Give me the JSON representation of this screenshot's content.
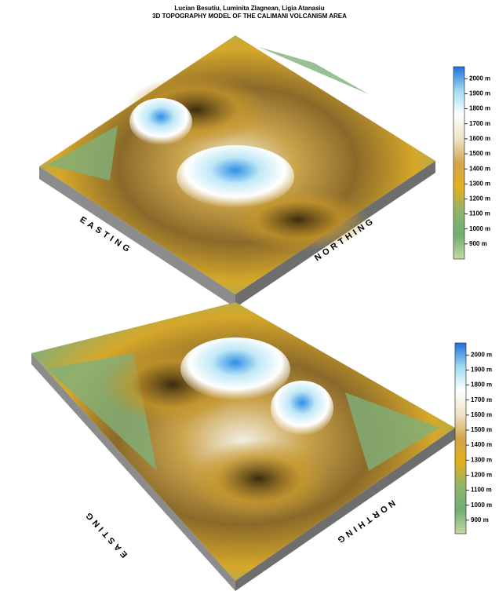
{
  "header": {
    "authors": "Lucian Besutiu, Luminita Zlagnean, Ligia Atanasiu",
    "title": "3D TOPOGRAPHY MODEL OF THE CALIMANI VOLCANISM AREA"
  },
  "models": [
    {
      "easting_label": "EASTING",
      "northing_label": "NORTHING",
      "colorbar": {
        "lim": [
          800,
          2080
        ],
        "colors": [
          "#c4d9a4",
          "#6fae74",
          "#8fb66a",
          "#e3ae1c",
          "#d3a54a",
          "#efe3c8",
          "#ffffff",
          "#9fdcf2",
          "#1f6fe0"
        ],
        "ticks": [
          {
            "value": 900,
            "label": "900 m"
          },
          {
            "value": 1000,
            "label": "1000 m"
          },
          {
            "value": 1100,
            "label": "1100 m"
          },
          {
            "value": 1200,
            "label": "1200 m"
          },
          {
            "value": 1300,
            "label": "1300 m"
          },
          {
            "value": 1400,
            "label": "1400 m"
          },
          {
            "value": 1500,
            "label": "1500 m"
          },
          {
            "value": 1600,
            "label": "1600 m"
          },
          {
            "value": 1700,
            "label": "1700 m"
          },
          {
            "value": 1800,
            "label": "1800 m"
          },
          {
            "value": 1900,
            "label": "1900 m"
          },
          {
            "value": 2000,
            "label": "2000 m"
          }
        ]
      }
    },
    {
      "easting_label": "EASTING",
      "northing_label": "NORTHING",
      "colorbar": {
        "lim": [
          810,
          2080
        ],
        "colors": [
          "#c4d9a4",
          "#6fae74",
          "#8fb66a",
          "#e3ae1c",
          "#d3a54a",
          "#efe3c8",
          "#ffffff",
          "#9fdcf2",
          "#1f6fe0"
        ],
        "ticks": [
          {
            "value": 900,
            "label": "900 m"
          },
          {
            "value": 1000,
            "label": "1000 m"
          },
          {
            "value": 1100,
            "label": "1100 m"
          },
          {
            "value": 1200,
            "label": "1200 m"
          },
          {
            "value": 1300,
            "label": "1300 m"
          },
          {
            "value": 1400,
            "label": "1400 m"
          },
          {
            "value": 1500,
            "label": "1500 m"
          },
          {
            "value": 1600,
            "label": "1600 m"
          },
          {
            "value": 1700,
            "label": "1700 m"
          },
          {
            "value": 1800,
            "label": "1800 m"
          },
          {
            "value": 1900,
            "label": "1900 m"
          },
          {
            "value": 2000,
            "label": "2000 m"
          }
        ]
      }
    }
  ]
}
